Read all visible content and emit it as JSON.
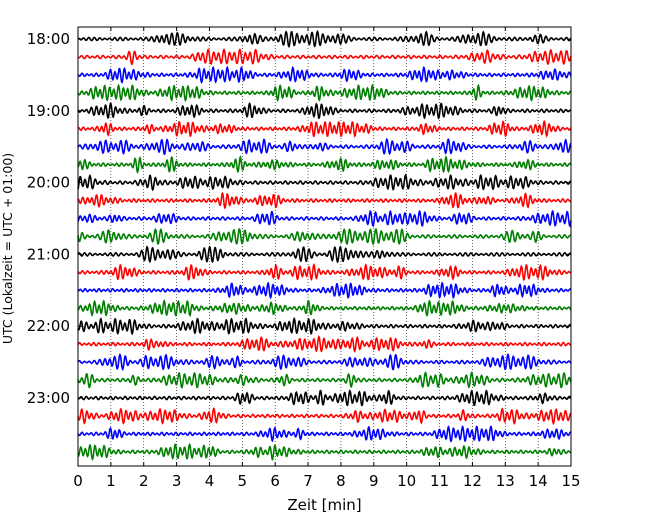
{
  "chart_data": {
    "type": "line",
    "title": "",
    "xlabel": "Zeit  [min]",
    "ylabel": "UTC (Lokalzeit = UTC + 01:00)",
    "xlim": [
      0,
      15
    ],
    "x_ticks": [
      "0",
      "1",
      "2",
      "3",
      "4",
      "5",
      "6",
      "7",
      "8",
      "9",
      "10",
      "11",
      "12",
      "13",
      "14",
      "15"
    ],
    "y_ticks": [
      "18:00",
      "19:00",
      "20:00",
      "21:00",
      "22:00",
      "23:00"
    ],
    "grid": "vertical dotted",
    "legend": "none",
    "trace_interval_min": 15,
    "trace_colors": [
      "#000000",
      "#ff0000",
      "#0000ff",
      "#007f00"
    ],
    "traces": [
      {
        "start": "18:00",
        "color": "#000000"
      },
      {
        "start": "18:15",
        "color": "#ff0000"
      },
      {
        "start": "18:30",
        "color": "#0000ff"
      },
      {
        "start": "18:45",
        "color": "#007f00"
      },
      {
        "start": "19:00",
        "color": "#000000"
      },
      {
        "start": "19:15",
        "color": "#ff0000"
      },
      {
        "start": "19:30",
        "color": "#0000ff"
      },
      {
        "start": "19:45",
        "color": "#007f00"
      },
      {
        "start": "20:00",
        "color": "#000000"
      },
      {
        "start": "20:15",
        "color": "#ff0000"
      },
      {
        "start": "20:30",
        "color": "#0000ff"
      },
      {
        "start": "20:45",
        "color": "#007f00"
      },
      {
        "start": "21:00",
        "color": "#000000"
      },
      {
        "start": "21:15",
        "color": "#ff0000"
      },
      {
        "start": "21:30",
        "color": "#0000ff"
      },
      {
        "start": "21:45",
        "color": "#007f00"
      },
      {
        "start": "22:00",
        "color": "#000000"
      },
      {
        "start": "22:15",
        "color": "#ff0000"
      },
      {
        "start": "22:30",
        "color": "#0000ff"
      },
      {
        "start": "22:45",
        "color": "#007f00"
      },
      {
        "start": "23:00",
        "color": "#000000"
      },
      {
        "start": "23:15",
        "color": "#ff0000"
      },
      {
        "start": "23:30",
        "color": "#0000ff"
      },
      {
        "start": "23:45",
        "color": "#007f00"
      }
    ]
  }
}
